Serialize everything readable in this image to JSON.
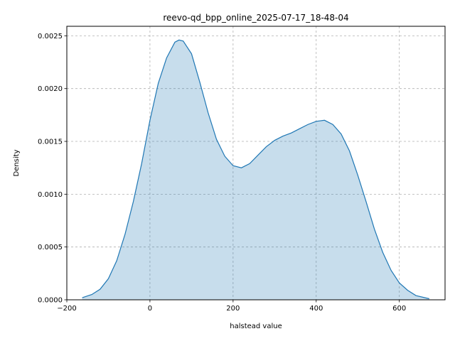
{
  "chart_data": {
    "type": "area",
    "title": "reevo-qd_bpp_online_2025-07-17_18-48-04",
    "xlabel": "halstead value",
    "ylabel": "Density",
    "xlim": [
      -200,
      710
    ],
    "ylim": [
      0,
      0.00259
    ],
    "x_ticks": [
      -200,
      0,
      200,
      400,
      600
    ],
    "x_tick_labels": [
      "−200",
      "0",
      "200",
      "400",
      "600"
    ],
    "y_ticks": [
      0,
      0.0005,
      0.001,
      0.0015,
      0.002,
      0.0025
    ],
    "y_tick_labels": [
      "0.0000",
      "0.0005",
      "0.0010",
      "0.0015",
      "0.0020",
      "0.0025"
    ],
    "grid": true,
    "colors": {
      "line": "#1f77b4",
      "fill": "#1f77b4",
      "grid": "#b0b0b0"
    },
    "series": [
      {
        "x": [
          -163,
          -140,
          -120,
          -100,
          -80,
          -60,
          -40,
          -20,
          0,
          20,
          40,
          60,
          70,
          80,
          100,
          120,
          140,
          160,
          180,
          200,
          220,
          240,
          260,
          280,
          300,
          320,
          340,
          360,
          380,
          400,
          420,
          440,
          460,
          480,
          500,
          520,
          540,
          560,
          580,
          600,
          620,
          640,
          672
        ],
        "y": [
          2e-05,
          5e-05,
          0.0001,
          0.0002,
          0.00037,
          0.00062,
          0.00093,
          0.00129,
          0.0017,
          0.00205,
          0.00229,
          0.00244,
          0.00246,
          0.00245,
          0.00233,
          0.00206,
          0.00177,
          0.00152,
          0.00136,
          0.00127,
          0.00125,
          0.00129,
          0.00137,
          0.00145,
          0.00151,
          0.00155,
          0.00158,
          0.00162,
          0.00166,
          0.00169,
          0.0017,
          0.00166,
          0.00157,
          0.00141,
          0.00118,
          0.00093,
          0.00067,
          0.00045,
          0.00028,
          0.00016,
          9e-05,
          4e-05,
          1e-05
        ]
      }
    ]
  }
}
